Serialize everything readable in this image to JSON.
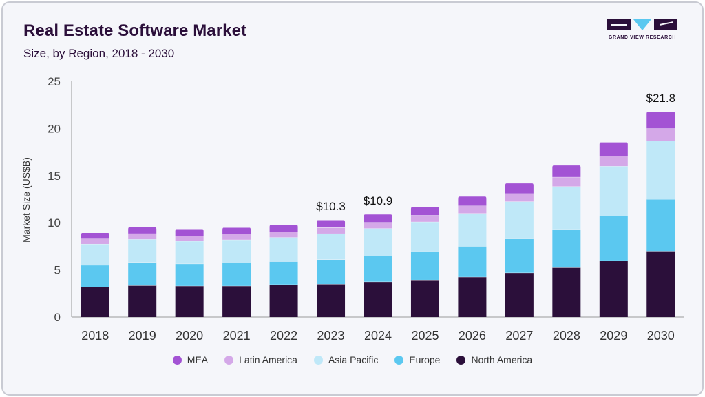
{
  "header": {
    "title": "Real Estate Software Market",
    "subtitle": "Size, by Region, 2018 - 2030"
  },
  "logo": {
    "text": "GRAND VIEW RESEARCH",
    "color": "#2b0f3a",
    "accent": "#5bc8f0"
  },
  "chart_data": {
    "type": "bar",
    "stacked": true,
    "categories": [
      "2018",
      "2019",
      "2020",
      "2021",
      "2022",
      "2023",
      "2024",
      "2025",
      "2026",
      "2027",
      "2028",
      "2029",
      "2030"
    ],
    "ylabel": "Market Size (US$B)",
    "ylim": [
      0,
      25
    ],
    "yticks": [
      0,
      5,
      10,
      15,
      20,
      25
    ],
    "legend_position": "bottom",
    "series": [
      {
        "name": "North America",
        "color": "#2b0f3a",
        "values": [
          3.2,
          3.35,
          3.3,
          3.3,
          3.45,
          3.5,
          3.75,
          3.95,
          4.25,
          4.7,
          5.25,
          6.0,
          7.0
        ]
      },
      {
        "name": "Europe",
        "color": "#5bc8f0",
        "values": [
          2.3,
          2.45,
          2.35,
          2.45,
          2.45,
          2.6,
          2.75,
          3.0,
          3.25,
          3.6,
          4.05,
          4.7,
          5.5
        ]
      },
      {
        "name": "Asia Pacific",
        "color": "#bfe8f8",
        "values": [
          2.25,
          2.45,
          2.4,
          2.45,
          2.55,
          2.75,
          2.9,
          3.15,
          3.5,
          3.95,
          4.55,
          5.3,
          6.2
        ]
      },
      {
        "name": "Latin America",
        "color": "#d4a8e8",
        "values": [
          0.55,
          0.6,
          0.55,
          0.6,
          0.6,
          0.65,
          0.65,
          0.7,
          0.8,
          0.85,
          1.0,
          1.1,
          1.3
        ]
      },
      {
        "name": "MEA",
        "color": "#a353d4",
        "values": [
          0.65,
          0.7,
          0.75,
          0.7,
          0.75,
          0.8,
          0.85,
          0.9,
          1.0,
          1.1,
          1.25,
          1.45,
          1.8
        ]
      }
    ],
    "annotations": [
      {
        "category": "2023",
        "label": "$10.3"
      },
      {
        "category": "2024",
        "label": "$10.9"
      },
      {
        "category": "2030",
        "label": "$21.8"
      }
    ]
  }
}
